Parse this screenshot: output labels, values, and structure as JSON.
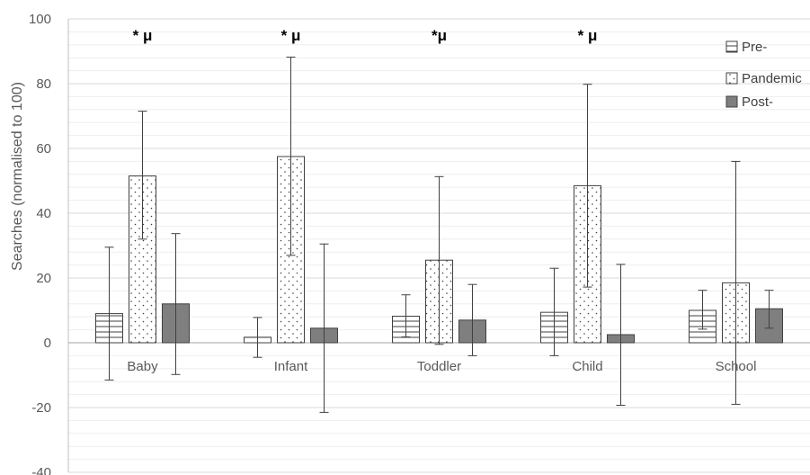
{
  "chart_data": {
    "type": "bar",
    "title": "",
    "xlabel": "",
    "ylabel": "Searches (normalised to 100)",
    "ylim": [
      -40,
      100
    ],
    "yticks": [
      "100",
      "80",
      "60",
      "40",
      "20",
      "0",
      "-20",
      "-40"
    ],
    "categories": [
      "Baby",
      "Infant",
      "Toddler",
      "Child",
      "School"
    ],
    "series": [
      {
        "name": "Pre-",
        "pattern": "horizontal-lines",
        "values": [
          9,
          1.7,
          8.2,
          9.4,
          10
        ],
        "err_low": [
          -11.5,
          -4.5,
          1.8,
          -4,
          4.2
        ],
        "err_high": [
          29.5,
          7.8,
          14.8,
          23,
          16.2
        ]
      },
      {
        "name": "Pandemic",
        "pattern": "dots",
        "values": [
          51.5,
          57.5,
          25.5,
          48.5,
          18.5
        ],
        "err_low": [
          32,
          27,
          -0.5,
          17.2,
          -19
        ],
        "err_high": [
          71.5,
          88.2,
          51.3,
          79.8,
          56
        ]
      },
      {
        "name": "Post-",
        "pattern": "solid",
        "values": [
          12,
          4.5,
          7,
          2.5,
          10.5
        ],
        "err_low": [
          -9.8,
          -21.5,
          -4,
          -19.3,
          4.5
        ],
        "err_high": [
          33.7,
          30.5,
          18,
          24.2,
          16.2
        ]
      }
    ],
    "annotations": [
      {
        "category": "Baby",
        "text": "* μ"
      },
      {
        "category": "Infant",
        "text": "* μ"
      },
      {
        "category": "Toddler",
        "text": "*μ"
      },
      {
        "category": "Child",
        "text": "* μ"
      }
    ],
    "colors": {
      "bar_fill": "#ffffff",
      "bar_edge": "#404040",
      "post_fill": "#7f7f7f",
      "gridline": "#e6e6e6",
      "axis": "#bfbfbf"
    },
    "legend": "top-right",
    "grid": true
  }
}
